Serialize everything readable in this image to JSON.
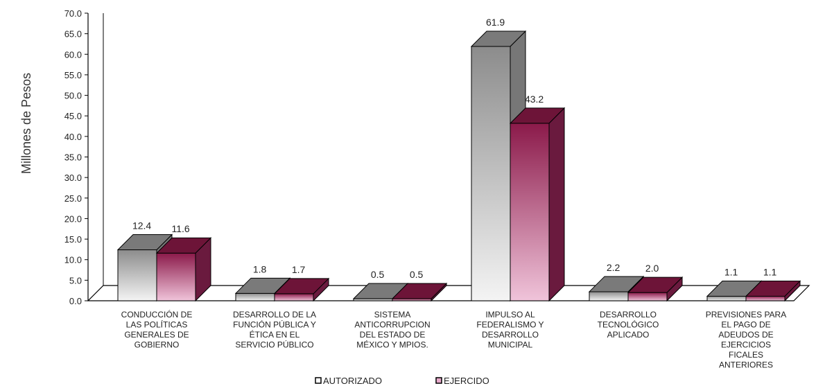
{
  "chart_data": {
    "type": "bar",
    "ylabel": "Millones de Pesos",
    "ylim": [
      0,
      70
    ],
    "yticks": [
      "0.0",
      "5.0",
      "10.0",
      "15.0",
      "20.0",
      "25.0",
      "30.0",
      "35.0",
      "40.0",
      "45.0",
      "50.0",
      "55.0",
      "60.0",
      "65.0",
      "70.0"
    ],
    "categories": [
      [
        "CONDUCCIÓN DE",
        "LAS POLÍTICAS",
        "GENERALES DE",
        "GOBIERNO"
      ],
      [
        "DESARROLLO DE LA",
        "FUNCIÓN PÚBLICA Y",
        "ÉTICA EN EL",
        "SERVICIO PÚBLICO"
      ],
      [
        "SISTEMA",
        "ANTICORRUPCION",
        "DEL ESTADO DE",
        "MÉXICO Y MPIOS."
      ],
      [
        "IMPULSO AL",
        "FEDERALISMO Y",
        "DESARROLLO",
        "MUNICIPAL"
      ],
      [
        "DESARROLLO",
        "TECNOLÓGICO",
        "APLICADO"
      ],
      [
        "PREVISIONES  PARA",
        "EL PAGO DE",
        "ADEUDOS DE",
        "EJERCICIOS",
        "FICALES",
        "ANTERIORES"
      ]
    ],
    "series": [
      {
        "name": "AUTORIZADO",
        "values": [
          12.4,
          1.8,
          0.5,
          61.9,
          2.2,
          1.1
        ],
        "labels": [
          "12.4",
          "1.8",
          "0.5",
          "61.9",
          "2.2",
          "1.1"
        ]
      },
      {
        "name": "EJERCIDO",
        "values": [
          11.6,
          1.7,
          0.5,
          43.2,
          2.0,
          1.1
        ],
        "labels": [
          "11.6",
          "1.7",
          "0.5",
          "43.2",
          "2.0",
          "1.1"
        ]
      }
    ],
    "legend_position": "bottom",
    "colors": {
      "autorizado": "#9a9a9a",
      "ejercido": "#8b1a4a"
    }
  }
}
